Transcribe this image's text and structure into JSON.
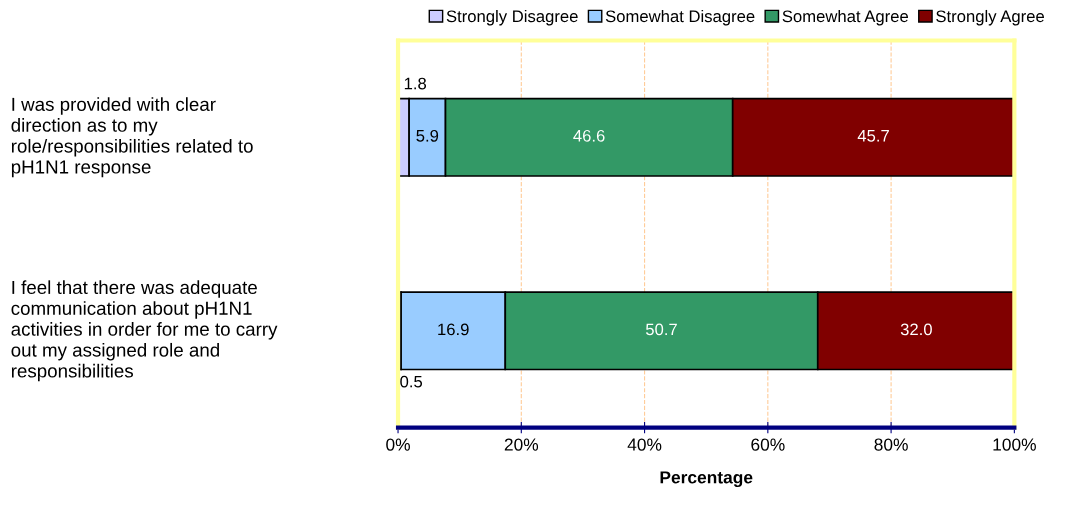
{
  "chart_data": {
    "type": "bar",
    "orientation": "horizontal",
    "stacked": true,
    "xlabel": "Percentage",
    "categories": [
      "I was provided with clear\ndirection as to my\nrole/responsibilities related to\npH1N1 response",
      "I feel that there was adequate\ncommunication about pH1N1\nactivities in order for me to carry\nout my assigned role and\nresponsibilities"
    ],
    "series": [
      {
        "name": "Strongly Disagree",
        "color": "#ccccff",
        "values": [
          1.8,
          0.5
        ],
        "value_labels": [
          "1.8",
          "0.5"
        ]
      },
      {
        "name": "Somewhat Disagree",
        "color": "#99ccff",
        "values": [
          5.9,
          16.9
        ],
        "value_labels": [
          "5.9",
          "16.9"
        ]
      },
      {
        "name": "Somewhat Agree",
        "color": "#339966",
        "values": [
          46.6,
          50.7
        ],
        "value_labels": [
          "46.6",
          "50.7"
        ]
      },
      {
        "name": "Strongly Agree",
        "color": "#800000",
        "values": [
          45.7,
          32.0
        ],
        "value_labels": [
          "45.7",
          "32.0"
        ]
      }
    ],
    "xlim": [
      0,
      100
    ],
    "xticks": [
      {
        "value": 0,
        "label": "0%"
      },
      {
        "value": 20,
        "label": "20%"
      },
      {
        "value": 40,
        "label": "40%"
      },
      {
        "value": 60,
        "label": "60%"
      },
      {
        "value": 80,
        "label": "80%"
      },
      {
        "value": 100,
        "label": "100%"
      }
    ],
    "grid": "x",
    "legend": "top"
  }
}
